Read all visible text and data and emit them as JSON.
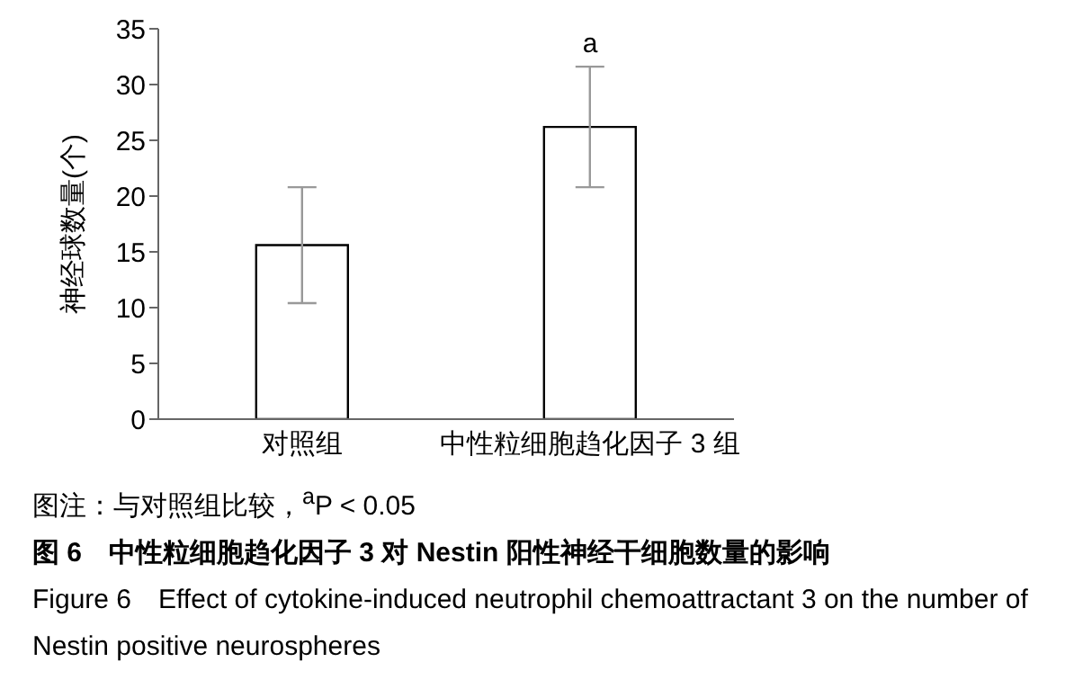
{
  "chart_data": {
    "type": "bar",
    "ylabel": "神经球数量(个)",
    "categories": [
      "对照组",
      "中性粒细胞趋化因子 3 组"
    ],
    "values": [
      15.6,
      26.2
    ],
    "errors": [
      [
        10.4,
        20.8
      ],
      [
        20.8,
        31.6
      ]
    ],
    "color": "#ffffff",
    "ylim": [
      0,
      35
    ],
    "yticks": [
      0,
      5,
      10,
      15,
      20,
      25,
      30,
      35
    ],
    "grid": false,
    "legend": false,
    "annotations": [
      {
        "text": "a",
        "x": "中性粒细胞趋化因子 3 组",
        "y": 31.6
      },
      "图注：与对照组比较，$^{a}$P < 0.05",
      "图 6　中性粒细胞趋化因子 3 对 Nestin 阳性神经干细胞数量的影响",
      "Figure 6　Effect of cytokine-induced neutrophil chemoattractant 3 on the number of Nestin positive neurospheres"
    ]
  }
}
